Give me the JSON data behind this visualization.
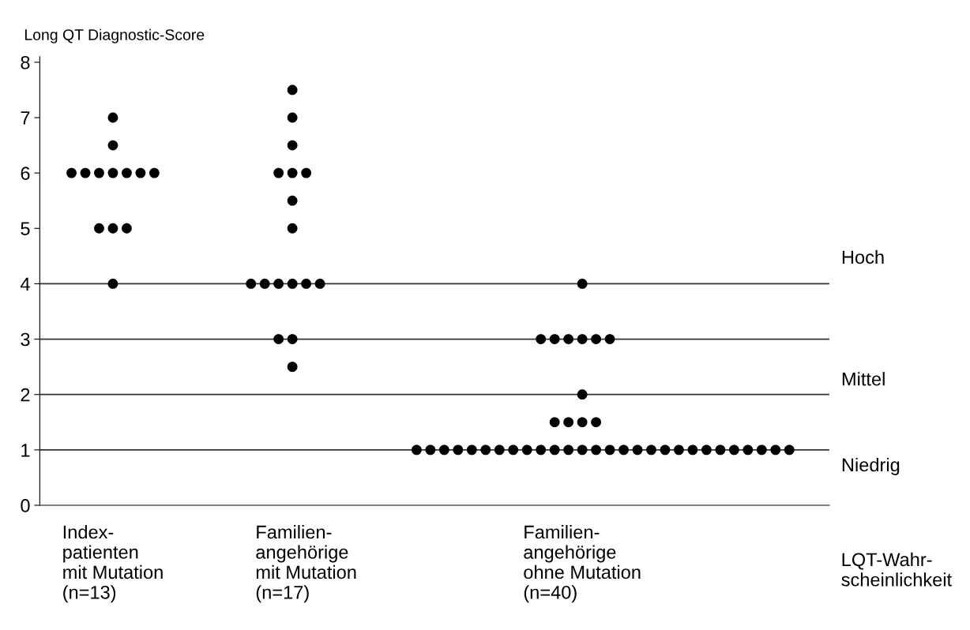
{
  "chart_data": {
    "type": "scatter",
    "ylabel": "Long QT Diagnostic-Score",
    "categories": [
      null,
      null,
      null,
      "Index-\npatienten\nmit Mutation\n(n=13)",
      null,
      null,
      null,
      null,
      null,
      null,
      null,
      null,
      null,
      null,
      null,
      null,
      null,
      "Familien-\nangehörige\nmit Mutation\n(n=17)",
      null,
      null,
      null,
      null,
      null,
      null,
      null,
      null,
      null,
      null,
      null,
      null,
      null,
      null,
      null,
      null,
      null,
      null,
      null,
      "Familien-\nangehörige\nohne Mutation\n(n=40)",
      null,
      null,
      null,
      null,
      null,
      null,
      null,
      null,
      null,
      null,
      null,
      null,
      null,
      null,
      null
    ],
    "series": [
      {
        "color": "#000000",
        "values": [
          null,
          null,
          null,
          null,
          null,
          null,
          null,
          null,
          null,
          null,
          null,
          null,
          null,
          null,
          null,
          null,
          7.5,
          null,
          null,
          null,
          null,
          null,
          null,
          null,
          null,
          null,
          null,
          null,
          null,
          null,
          null,
          null,
          null,
          null,
          null,
          null,
          null,
          null,
          null,
          null,
          null,
          null,
          null,
          null,
          null,
          null,
          null,
          null,
          null,
          null,
          null,
          null,
          null
        ]
      },
      {
        "color": "#000000",
        "values": [
          null,
          null,
          null,
          7,
          null,
          null,
          null,
          null,
          null,
          null,
          null,
          null,
          null,
          null,
          null,
          null,
          7,
          null,
          null,
          null,
          null,
          null,
          null,
          null,
          null,
          null,
          null,
          null,
          null,
          null,
          null,
          null,
          null,
          null,
          null,
          null,
          null,
          null,
          null,
          null,
          null,
          null,
          null,
          null,
          null,
          null,
          null,
          null,
          null,
          null,
          null,
          null,
          null
        ]
      },
      {
        "color": "#000000",
        "values": [
          null,
          null,
          null,
          6.5,
          null,
          null,
          null,
          null,
          null,
          null,
          null,
          null,
          null,
          null,
          null,
          null,
          6.5,
          null,
          null,
          null,
          null,
          null,
          null,
          null,
          null,
          null,
          null,
          null,
          null,
          null,
          null,
          null,
          null,
          null,
          null,
          null,
          null,
          null,
          null,
          null,
          null,
          null,
          null,
          null,
          null,
          null,
          null,
          null,
          null,
          null,
          null,
          null,
          null
        ]
      },
      {
        "color": "#000000",
        "values": [
          6,
          6,
          6,
          6,
          6,
          6,
          6,
          null,
          null,
          null,
          null,
          null,
          null,
          null,
          null,
          6,
          6,
          6,
          null,
          null,
          null,
          null,
          null,
          null,
          null,
          null,
          null,
          null,
          null,
          null,
          null,
          null,
          null,
          null,
          null,
          null,
          null,
          null,
          null,
          null,
          null,
          null,
          null,
          null,
          null,
          null,
          null,
          null,
          null,
          null,
          null,
          null,
          null
        ]
      },
      {
        "color": "#000000",
        "values": [
          null,
          null,
          null,
          null,
          null,
          null,
          null,
          null,
          null,
          null,
          null,
          null,
          null,
          null,
          null,
          null,
          5.5,
          null,
          null,
          null,
          null,
          null,
          null,
          null,
          null,
          null,
          null,
          null,
          null,
          null,
          null,
          null,
          null,
          null,
          null,
          null,
          null,
          null,
          null,
          null,
          null,
          null,
          null,
          null,
          null,
          null,
          null,
          null,
          null,
          null,
          null,
          null,
          null
        ]
      },
      {
        "color": "#000000",
        "values": [
          null,
          null,
          5,
          5,
          5,
          null,
          null,
          null,
          null,
          null,
          null,
          null,
          null,
          null,
          null,
          null,
          5,
          null,
          null,
          null,
          null,
          null,
          null,
          null,
          null,
          null,
          null,
          null,
          null,
          null,
          null,
          null,
          null,
          null,
          null,
          null,
          null,
          null,
          null,
          null,
          null,
          null,
          null,
          null,
          null,
          null,
          null,
          null,
          null,
          null,
          null,
          null,
          null
        ]
      },
      {
        "color": "#000000",
        "values": [
          null,
          null,
          null,
          4,
          null,
          null,
          null,
          null,
          null,
          null,
          null,
          null,
          null,
          4,
          4,
          4,
          4,
          4,
          4,
          null,
          null,
          null,
          null,
          null,
          null,
          null,
          null,
          null,
          null,
          null,
          null,
          null,
          null,
          null,
          null,
          null,
          null,
          4,
          null,
          null,
          null,
          null,
          null,
          null,
          null,
          null,
          null,
          null,
          null,
          null,
          null,
          null,
          null
        ]
      },
      {
        "color": "#000000",
        "values": [
          null,
          null,
          null,
          null,
          null,
          null,
          null,
          null,
          null,
          null,
          null,
          null,
          null,
          null,
          null,
          3,
          3,
          null,
          null,
          null,
          null,
          null,
          null,
          null,
          null,
          null,
          null,
          null,
          null,
          null,
          null,
          null,
          null,
          null,
          3,
          3,
          3,
          3,
          3,
          3,
          null,
          null,
          null,
          null,
          null,
          null,
          null,
          null,
          null,
          null,
          null,
          null,
          null
        ]
      },
      {
        "color": "#000000",
        "values": [
          null,
          null,
          null,
          null,
          null,
          null,
          null,
          null,
          null,
          null,
          null,
          null,
          null,
          null,
          null,
          null,
          2.5,
          null,
          null,
          null,
          null,
          null,
          null,
          null,
          null,
          null,
          null,
          null,
          null,
          null,
          null,
          null,
          null,
          null,
          null,
          null,
          null,
          null,
          null,
          null,
          null,
          null,
          null,
          null,
          null,
          null,
          null,
          null,
          null,
          null,
          null,
          null,
          null
        ]
      },
      {
        "color": "#000000",
        "values": [
          null,
          null,
          null,
          null,
          null,
          null,
          null,
          null,
          null,
          null,
          null,
          null,
          null,
          null,
          null,
          null,
          null,
          null,
          null,
          null,
          null,
          null,
          null,
          null,
          null,
          null,
          null,
          null,
          null,
          null,
          null,
          null,
          null,
          null,
          null,
          null,
          null,
          2,
          null,
          null,
          null,
          null,
          null,
          null,
          null,
          null,
          null,
          null,
          null,
          null,
          null,
          null,
          null
        ]
      },
      {
        "color": "#000000",
        "values": [
          null,
          null,
          null,
          null,
          null,
          null,
          null,
          null,
          null,
          null,
          null,
          null,
          null,
          null,
          null,
          null,
          null,
          null,
          null,
          null,
          null,
          null,
          null,
          null,
          null,
          null,
          null,
          null,
          null,
          null,
          null,
          null,
          null,
          null,
          null,
          1.5,
          1.5,
          1.5,
          1.5,
          null,
          null,
          null,
          null,
          null,
          null,
          null,
          null,
          null,
          null,
          null,
          null,
          null,
          null
        ]
      },
      {
        "color": "#000000",
        "values": [
          null,
          null,
          null,
          null,
          null,
          null,
          null,
          null,
          null,
          null,
          null,
          null,
          null,
          null,
          null,
          null,
          null,
          null,
          null,
          null,
          null,
          null,
          null,
          null,
          null,
          1,
          1,
          1,
          1,
          1,
          1,
          1,
          1,
          1,
          1,
          1,
          1,
          1,
          1,
          1,
          1,
          1,
          1,
          1,
          1,
          1,
          1,
          1,
          1,
          1,
          1,
          1,
          1
        ]
      }
    ],
    "ylim": [
      0,
      8.1
    ],
    "yticks": [
      0,
      1,
      2,
      3,
      4,
      5,
      6,
      7,
      8
    ],
    "grid": false,
    "marker": "circle",
    "ref_lines": [
      {
        "axis": "y",
        "value": 1,
        "color": "#333333"
      },
      {
        "axis": "y",
        "value": 2,
        "color": "#333333"
      },
      {
        "axis": "y",
        "value": 3,
        "color": "#333333"
      },
      {
        "axis": "y",
        "value": 4,
        "color": "#333333"
      }
    ],
    "annotations": [
      "Hoch",
      "Mittel",
      "Niedrig",
      "LQT-Wahr-\nscheinlichkeit"
    ]
  }
}
